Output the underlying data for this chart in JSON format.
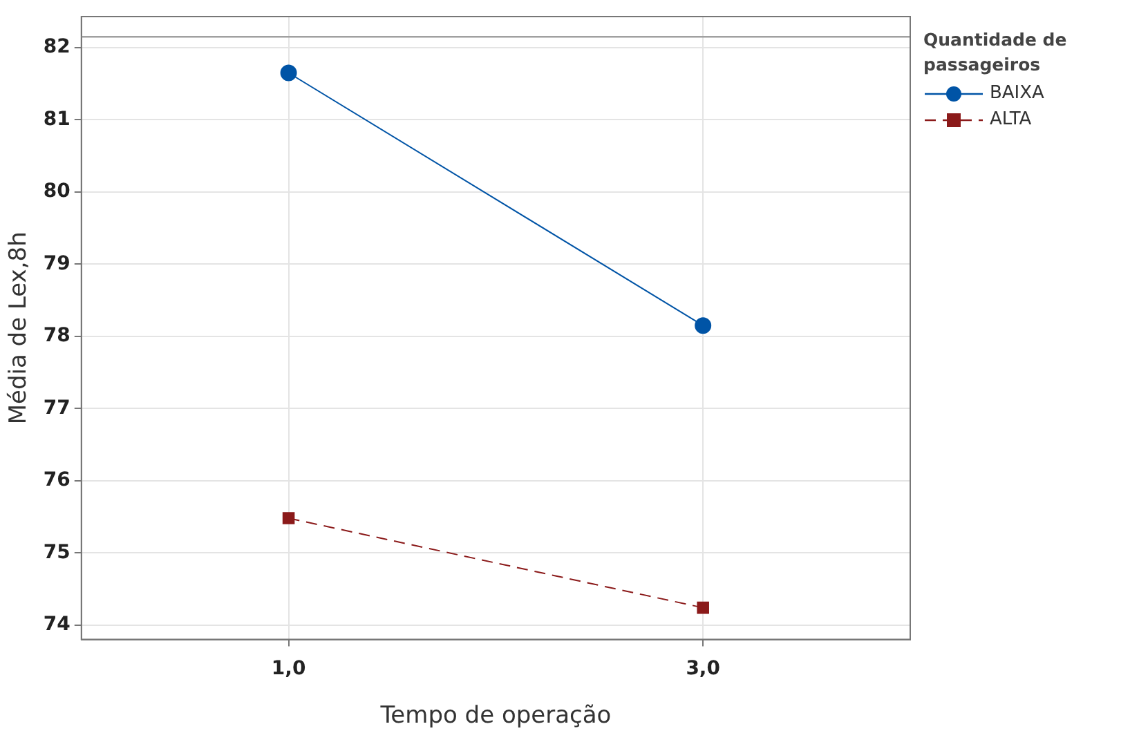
{
  "chart_data": {
    "type": "line",
    "xlabel": "Tempo de operação",
    "ylabel": "Média de Lex,8h",
    "legend_title": "Quantidade de passageiros",
    "legend": "top right",
    "grid": true,
    "x": [
      1,
      3
    ],
    "xlim": [
      0,
      4
    ],
    "xticks": [
      {
        "value": 1,
        "label": "1,0"
      },
      {
        "value": 3,
        "label": "3,0"
      }
    ],
    "ylim": [
      73.8,
      82.43
    ],
    "yticks": [
      74,
      75,
      76,
      77,
      78,
      79,
      80,
      81,
      82
    ],
    "ref_lines": [
      {
        "axis": "y",
        "value": 82.15,
        "color": "#a0a0a0",
        "line_style": "solid"
      }
    ],
    "series": [
      {
        "name": "BAIXA",
        "color": "#0054a6",
        "values": [
          81.65,
          78.15
        ],
        "marker": "circle",
        "line_style": "solid"
      },
      {
        "name": "ALTA",
        "color": "#8b1a1a",
        "values": [
          75.48,
          74.24
        ],
        "marker": "square",
        "line_style": "dashed"
      }
    ]
  }
}
